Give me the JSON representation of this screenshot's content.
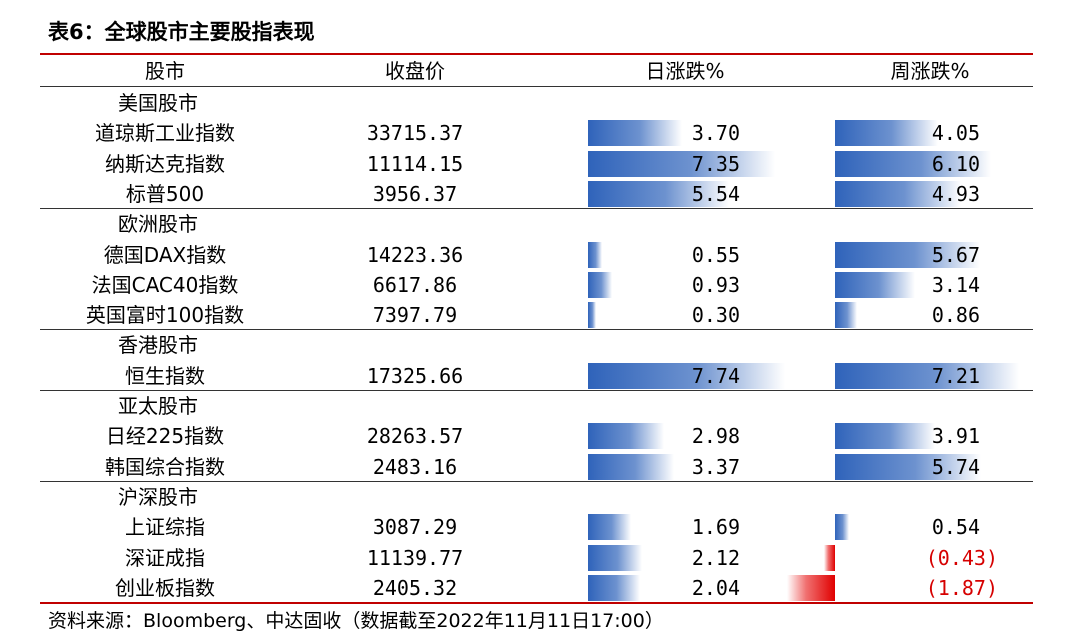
{
  "title": "表6：全球股市主要股指表现",
  "headers": {
    "market": "股市",
    "close": "收盘价",
    "daily": "日涨跌%",
    "weekly": "周涨跌%"
  },
  "groups": [
    {
      "name": "美国股市",
      "rows": [
        {
          "name": "道琼斯工业指数",
          "close": "33715.37",
          "daily": "3.70",
          "weekly": "4.05",
          "daily_value": 3.7,
          "weekly_value": 4.05
        },
        {
          "name": "纳斯达克指数",
          "close": "11114.15",
          "daily": "7.35",
          "weekly": "6.10",
          "daily_value": 7.35,
          "weekly_value": 6.1
        },
        {
          "name": "标普500",
          "close": "3956.37",
          "daily": "5.54",
          "weekly": "4.93",
          "daily_value": 5.54,
          "weekly_value": 4.93
        }
      ]
    },
    {
      "name": "欧洲股市",
      "rows": [
        {
          "name": "德国DAX指数",
          "close": "14223.36",
          "daily": "0.55",
          "weekly": "5.67",
          "daily_value": 0.55,
          "weekly_value": 5.67
        },
        {
          "name": "法国CAC40指数",
          "close": "6617.86",
          "daily": "0.93",
          "weekly": "3.14",
          "daily_value": 0.93,
          "weekly_value": 3.14
        },
        {
          "name": "英国富时100指数",
          "close": "7397.79",
          "daily": "0.30",
          "weekly": "0.86",
          "daily_value": 0.3,
          "weekly_value": 0.86
        }
      ]
    },
    {
      "name": "香港股市",
      "rows": [
        {
          "name": "恒生指数",
          "close": "17325.66",
          "daily": "7.74",
          "weekly": "7.21",
          "daily_value": 7.74,
          "weekly_value": 7.21
        }
      ]
    },
    {
      "name": "亚太股市",
      "rows": [
        {
          "name": "日经225指数",
          "close": "28263.57",
          "daily": "2.98",
          "weekly": "3.91",
          "daily_value": 2.98,
          "weekly_value": 3.91
        },
        {
          "name": "韩国综合指数",
          "close": "2483.16",
          "daily": "3.37",
          "weekly": "5.74",
          "daily_value": 3.37,
          "weekly_value": 5.74
        }
      ]
    },
    {
      "name": "沪深股市",
      "rows": [
        {
          "name": "上证综指",
          "close": "3087.29",
          "daily": "1.69",
          "weekly": "0.54",
          "daily_value": 1.69,
          "weekly_value": 0.54
        },
        {
          "name": "深证成指",
          "close": "11139.77",
          "daily": "2.12",
          "weekly": "(0.43)",
          "daily_value": 2.12,
          "weekly_value": -0.43
        },
        {
          "name": "创业板指数",
          "close": "2405.32",
          "daily": "2.04",
          "weekly": "(1.87)",
          "daily_value": 2.04,
          "weekly_value": -1.87
        }
      ]
    }
  ],
  "source": "资料来源：Bloomberg、中达固收（数据截至2022年11月11日17:00）",
  "colors": {
    "rule": "#c00000",
    "bar_positive": "#2f63ba",
    "bar_negative": "#e00000",
    "negative_text": "#d60000"
  }
}
